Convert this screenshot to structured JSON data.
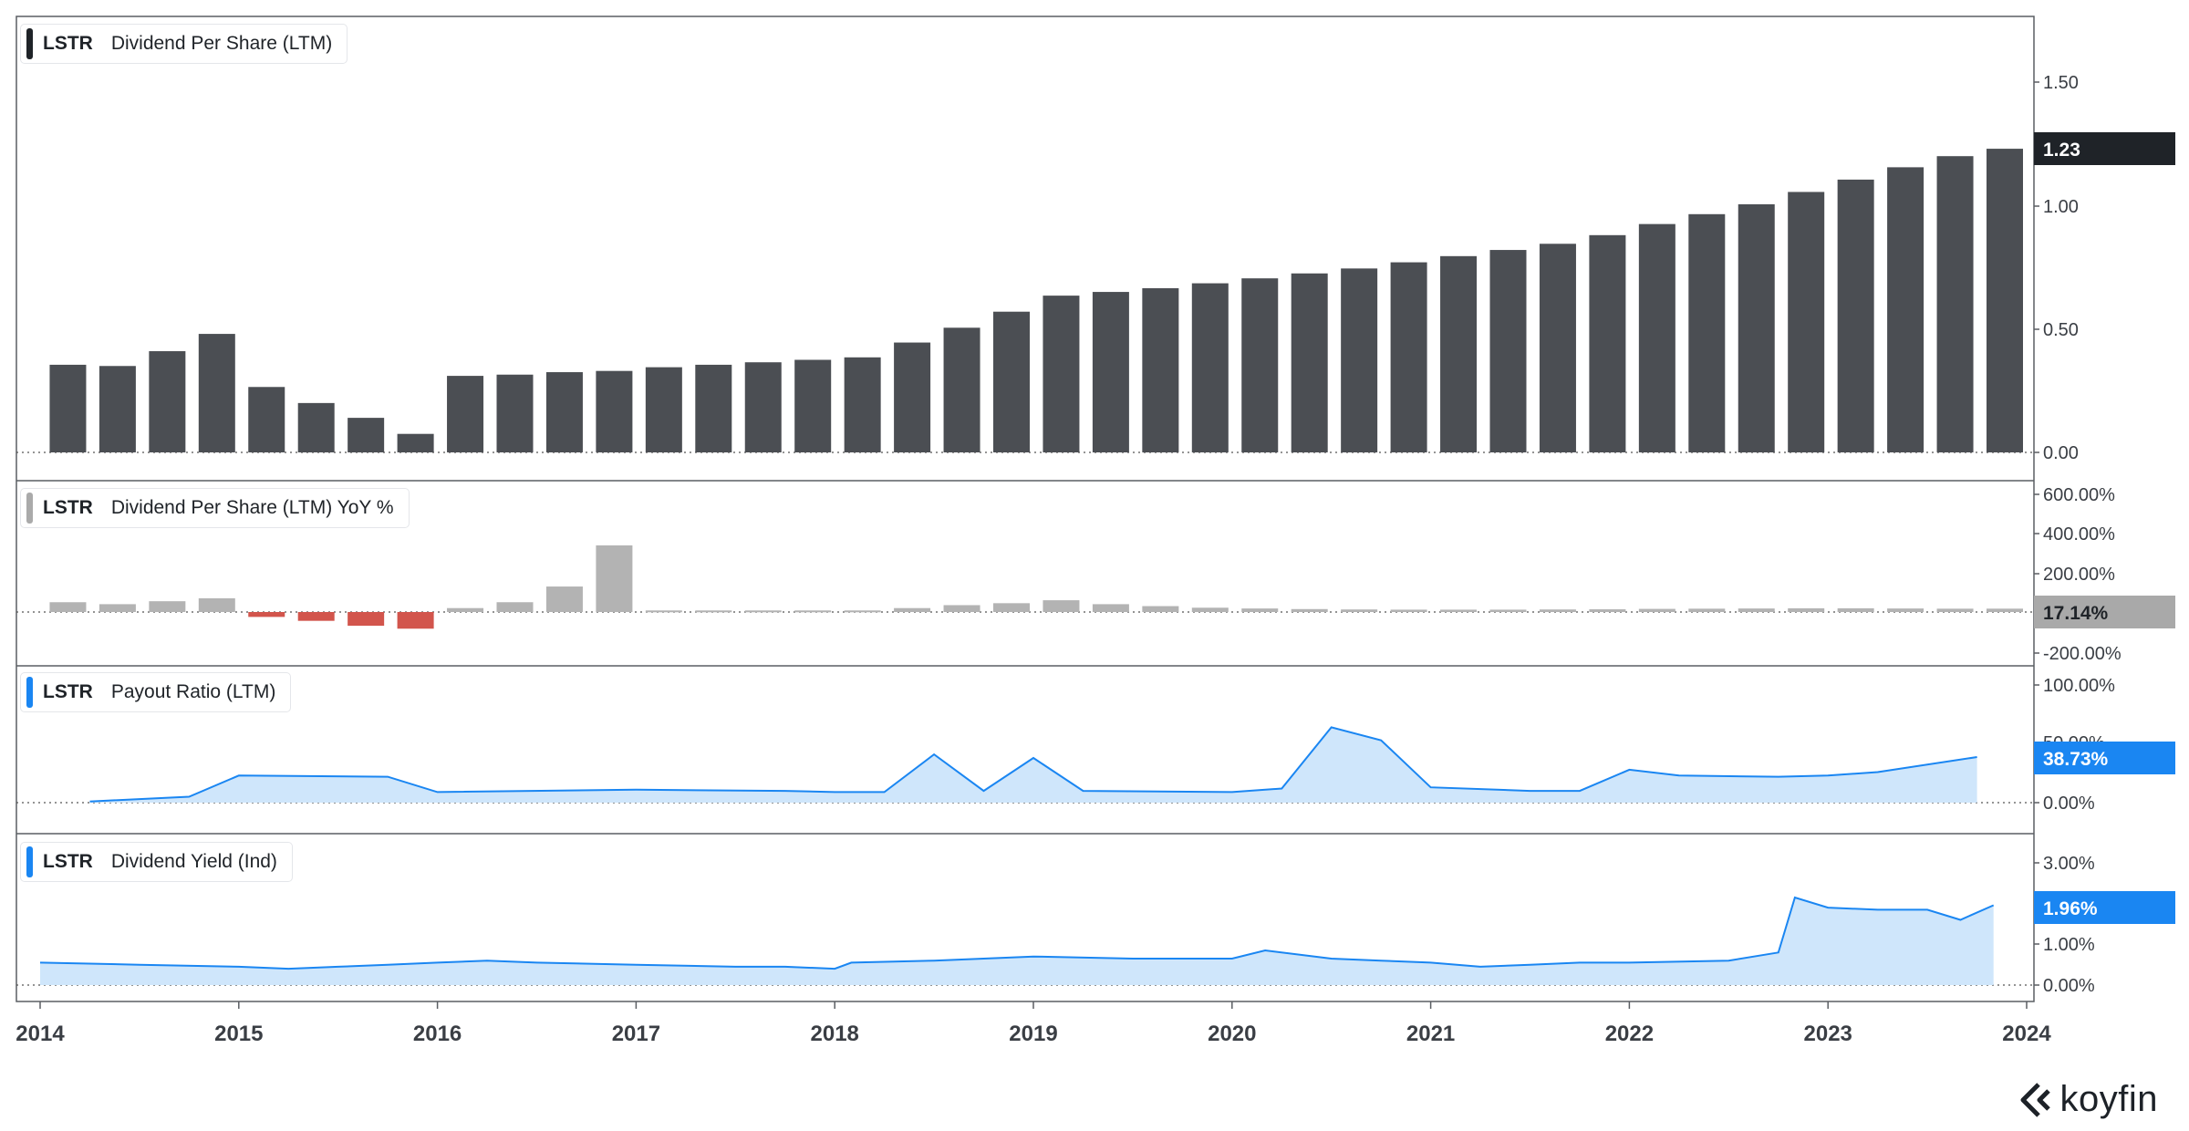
{
  "panels": [
    {
      "ticker": "LSTR",
      "name": "Dividend Per Share (LTM)",
      "swatch_color": "#1f2328",
      "current_value": "1.23",
      "current_color": "#1f2328",
      "axis_ticks": [
        "1.50",
        "1.00",
        "0.50",
        "0.00"
      ]
    },
    {
      "ticker": "LSTR",
      "name": "Dividend Per Share (LTM) YoY %",
      "swatch_color": "#aaaaaa",
      "current_value": "17.14%",
      "current_color": "#a9a9a9",
      "axis_ticks": [
        "600.00%",
        "400.00%",
        "200.00%",
        "-200.00%"
      ]
    },
    {
      "ticker": "LSTR",
      "name": "Payout Ratio (LTM)",
      "swatch_color": "#1a86f2",
      "current_value": "38.73%",
      "current_color": "#1a86f2",
      "axis_ticks": [
        "100.00%",
        "50.00%",
        "0.00%"
      ]
    },
    {
      "ticker": "LSTR",
      "name": "Dividend Yield (Ind)",
      "swatch_color": "#1a86f2",
      "current_value": "1.96%",
      "current_color": "#1a86f2",
      "axis_ticks": [
        "3.00%",
        "1.00%",
        "0.00%"
      ]
    }
  ],
  "x_axis": {
    "tick_labels": [
      "2014",
      "2015",
      "2016",
      "2017",
      "2018",
      "2019",
      "2020",
      "2021",
      "2022",
      "2023",
      "2024"
    ]
  },
  "brand": {
    "name": "koyfin"
  },
  "colors": {
    "dps_bar": "#4b4e53",
    "yoy_positive": "#b3b3b3",
    "yoy_negative": "#d2554c",
    "payout_line": "#1a86f2",
    "payout_fill": "#cfe6fb",
    "yield_line": "#1a86f2",
    "yield_fill": "#cfe6fb"
  },
  "chart_data": [
    {
      "type": "bar",
      "title": "LSTR Dividend Per Share (LTM)",
      "x": [
        "2014-04",
        "2014-07",
        "2014-10",
        "2015-01",
        "2015-04",
        "2015-07",
        "2015-10",
        "2016-01",
        "2016-04",
        "2016-07",
        "2016-10",
        "2017-01",
        "2017-04",
        "2017-07",
        "2017-10",
        "2018-01",
        "2018-04",
        "2018-07",
        "2018-10",
        "2019-01",
        "2019-04",
        "2019-07",
        "2019-10",
        "2020-01",
        "2020-04",
        "2020-07",
        "2020-10",
        "2021-01",
        "2021-04",
        "2021-07",
        "2021-10",
        "2022-01",
        "2022-04",
        "2022-07",
        "2022-10",
        "2023-01",
        "2023-04",
        "2023-07",
        "2023-10",
        "2024-01"
      ],
      "values": [
        0.355,
        0.35,
        0.41,
        0.48,
        0.265,
        0.2,
        0.14,
        0.075,
        0.31,
        0.315,
        0.325,
        0.33,
        0.345,
        0.355,
        0.365,
        0.375,
        0.385,
        0.445,
        0.505,
        0.57,
        0.635,
        0.65,
        0.665,
        0.685,
        0.705,
        0.725,
        0.745,
        0.77,
        0.795,
        0.82,
        0.845,
        0.88,
        0.925,
        0.965,
        1.005,
        1.055,
        1.105,
        1.155,
        1.2,
        1.23
      ],
      "ylim": [
        0,
        1.7
      ]
    },
    {
      "type": "bar",
      "title": "LSTR Dividend Per Share (LTM) YoY %",
      "x": [
        "2014-04",
        "2014-07",
        "2014-10",
        "2015-01",
        "2015-04",
        "2015-07",
        "2015-10",
        "2016-01",
        "2016-04",
        "2016-07",
        "2016-10",
        "2017-01",
        "2017-04",
        "2017-07",
        "2017-10",
        "2018-01",
        "2018-04",
        "2018-07",
        "2018-10",
        "2019-01",
        "2019-04",
        "2019-07",
        "2019-10",
        "2020-01",
        "2020-04",
        "2020-07",
        "2020-10",
        "2021-01",
        "2021-04",
        "2021-07",
        "2021-10",
        "2022-01",
        "2022-04",
        "2022-07",
        "2022-10",
        "2023-01",
        "2023-04",
        "2023-07",
        "2023-10",
        "2024-01"
      ],
      "values": [
        50,
        40,
        55,
        70,
        -25,
        -45,
        -70,
        -85,
        20,
        50,
        130,
        340,
        8,
        8,
        8,
        8,
        8,
        20,
        35,
        45,
        60,
        40,
        30,
        22,
        18,
        15,
        13,
        12,
        12,
        12,
        13,
        14,
        16,
        17,
        18,
        19,
        19,
        18,
        17,
        17.14
      ],
      "ylim": [
        -250,
        650
      ]
    },
    {
      "type": "area",
      "title": "LSTR Payout Ratio (LTM)",
      "x": [
        "2014-04",
        "2014-10",
        "2015-01",
        "2015-10",
        "2016-01",
        "2017-01",
        "2017-10",
        "2018-01",
        "2018-04",
        "2018-07",
        "2018-10",
        "2019-01",
        "2019-04",
        "2020-01",
        "2020-04",
        "2020-07",
        "2020-10",
        "2021-01",
        "2021-07",
        "2021-10",
        "2022-01",
        "2022-04",
        "2022-10",
        "2023-01",
        "2023-04",
        "2023-10"
      ],
      "values": [
        1,
        5,
        23,
        22,
        9,
        11,
        10,
        9,
        9,
        41,
        10,
        38,
        10,
        9,
        12,
        64,
        53,
        13,
        10,
        10,
        28,
        23,
        22,
        23,
        26,
        38.73
      ],
      "ylim": [
        0,
        110
      ]
    },
    {
      "type": "area",
      "title": "LSTR Dividend Yield (Ind)",
      "x": [
        "2014-01",
        "2014-07",
        "2015-01",
        "2015-04",
        "2015-07",
        "2015-10",
        "2016-01",
        "2016-04",
        "2016-07",
        "2017-01",
        "2017-07",
        "2017-10",
        "2018-01",
        "2018-02",
        "2018-07",
        "2018-10",
        "2019-01",
        "2019-07",
        "2020-01",
        "2020-03",
        "2020-07",
        "2020-10",
        "2021-01",
        "2021-04",
        "2021-07",
        "2021-10",
        "2022-01",
        "2022-07",
        "2022-10",
        "2022-11",
        "2023-01",
        "2023-04",
        "2023-07",
        "2023-09",
        "2023-11"
      ],
      "values": [
        0.55,
        0.5,
        0.45,
        0.4,
        0.45,
        0.5,
        0.55,
        0.6,
        0.55,
        0.5,
        0.45,
        0.45,
        0.4,
        0.55,
        0.6,
        0.65,
        0.7,
        0.65,
        0.65,
        0.85,
        0.65,
        0.6,
        0.55,
        0.45,
        0.5,
        0.55,
        0.55,
        0.6,
        0.8,
        2.15,
        1.9,
        1.85,
        1.85,
        1.6,
        1.96
      ],
      "ylim": [
        -0.2,
        3.5
      ]
    }
  ]
}
